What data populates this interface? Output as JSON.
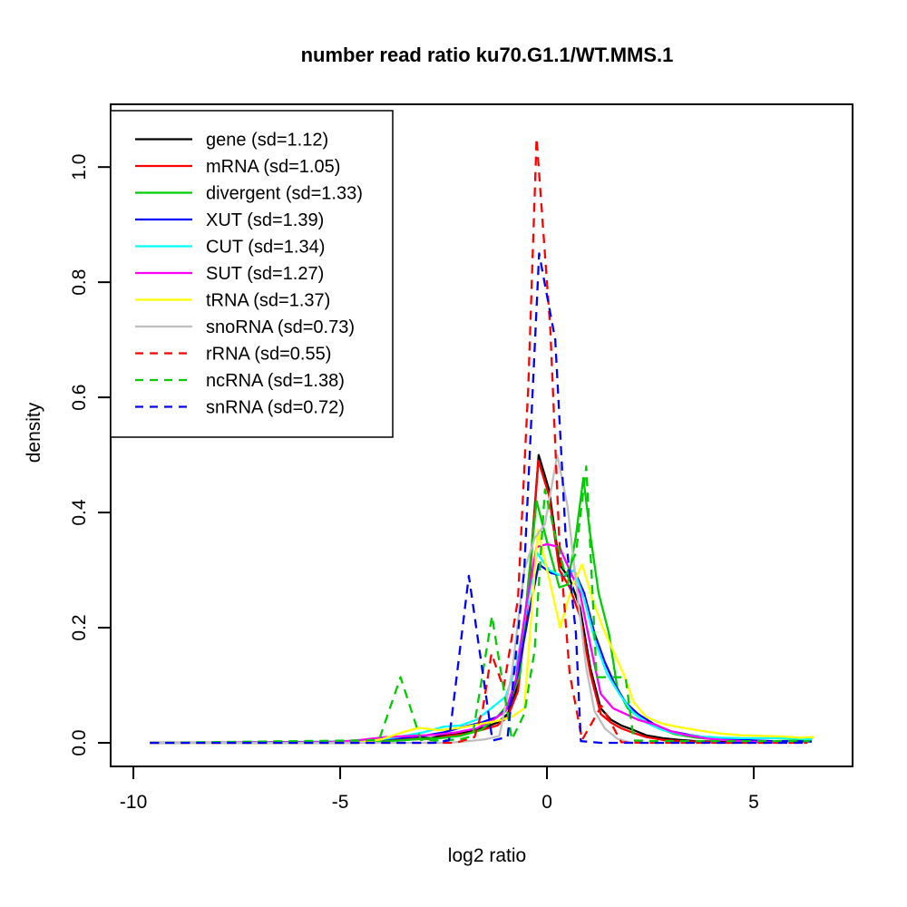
{
  "chart_data": {
    "type": "line",
    "title": "number read ratio ku70.G1.1/WT.MMS.1",
    "xlabel": "log2 ratio",
    "ylabel": "density",
    "xlim": [
      -10.55,
      7.39
    ],
    "ylim": [
      -0.041,
      1.109
    ],
    "x_ticks": [
      "-10",
      "-5",
      "0",
      "5"
    ],
    "x_tick_values": [
      -10,
      -5,
      0,
      5
    ],
    "y_ticks": [
      "0.0",
      "0.2",
      "0.4",
      "0.6",
      "0.8",
      "1.0"
    ],
    "y_tick_values": [
      0.0,
      0.2,
      0.4,
      0.6,
      0.8,
      1.0
    ],
    "grid": false,
    "legend_position": "top-left",
    "series": [
      {
        "name": "gene",
        "label": "gene (sd=1.12)",
        "color": "#000000",
        "style": "solid",
        "points": [
          [
            -9.6,
            0
          ],
          [
            -5,
            0.001
          ],
          [
            -4.5,
            0.002
          ],
          [
            -3.8,
            0.004
          ],
          [
            -3.2,
            0.01
          ],
          [
            -2.8,
            0.008
          ],
          [
            -2.4,
            0.015
          ],
          [
            -2,
            0.018
          ],
          [
            -1.6,
            0.025
          ],
          [
            -1.2,
            0.035
          ],
          [
            -0.95,
            0.05
          ],
          [
            -0.7,
            0.1
          ],
          [
            -0.45,
            0.26
          ],
          [
            -0.2,
            0.5
          ],
          [
            0.05,
            0.44
          ],
          [
            0.3,
            0.31
          ],
          [
            0.55,
            0.285
          ],
          [
            0.8,
            0.235
          ],
          [
            1.05,
            0.13
          ],
          [
            1.3,
            0.06
          ],
          [
            1.55,
            0.04
          ],
          [
            1.8,
            0.03
          ],
          [
            2.1,
            0.022
          ],
          [
            2.4,
            0.013
          ],
          [
            2.8,
            0.008
          ],
          [
            3.2,
            0.005
          ],
          [
            3.6,
            0.003
          ],
          [
            4,
            0.002
          ],
          [
            4.5,
            0.001
          ],
          [
            4.8,
            0
          ]
        ]
      },
      {
        "name": "mRNA",
        "label": "mRNA (sd=1.05)",
        "color": "#FF0000",
        "style": "solid",
        "points": [
          [
            -9.6,
            0
          ],
          [
            -5,
            0
          ],
          [
            -4,
            0.002
          ],
          [
            -3.3,
            0.009
          ],
          [
            -2.8,
            0.006
          ],
          [
            -2.4,
            0.012
          ],
          [
            -2,
            0.015
          ],
          [
            -1.6,
            0.022
          ],
          [
            -1.2,
            0.03
          ],
          [
            -0.95,
            0.045
          ],
          [
            -0.7,
            0.09
          ],
          [
            -0.45,
            0.25
          ],
          [
            -0.21,
            0.49
          ],
          [
            0.05,
            0.43
          ],
          [
            0.3,
            0.3
          ],
          [
            0.55,
            0.27
          ],
          [
            0.8,
            0.22
          ],
          [
            1.05,
            0.12
          ],
          [
            1.3,
            0.05
          ],
          [
            1.55,
            0.035
          ],
          [
            1.8,
            0.025
          ],
          [
            2.1,
            0.017
          ],
          [
            2.4,
            0.01
          ],
          [
            2.8,
            0.005
          ],
          [
            3.2,
            0.003
          ],
          [
            3.6,
            0.002
          ],
          [
            4,
            0.001
          ],
          [
            4.4,
            0
          ]
        ]
      },
      {
        "name": "divergent",
        "label": "divergent (sd=1.33)",
        "color": "#00CD00",
        "style": "solid",
        "points": [
          [
            -9.6,
            0
          ],
          [
            -4.6,
            0
          ],
          [
            -3.8,
            0.003
          ],
          [
            -3.2,
            0.006
          ],
          [
            -2.6,
            0.008
          ],
          [
            -2.1,
            0.012
          ],
          [
            -1.6,
            0.022
          ],
          [
            -1.2,
            0.045
          ],
          [
            -0.9,
            0.07
          ],
          [
            -0.65,
            0.12
          ],
          [
            -0.45,
            0.28
          ],
          [
            -0.25,
            0.42
          ],
          [
            0,
            0.35
          ],
          [
            0.3,
            0.27
          ],
          [
            0.5,
            0.275
          ],
          [
            0.7,
            0.36
          ],
          [
            0.88,
            0.46
          ],
          [
            1.05,
            0.36
          ],
          [
            1.25,
            0.26
          ],
          [
            1.5,
            0.19
          ],
          [
            1.7,
            0.095
          ],
          [
            1.95,
            0.06
          ],
          [
            2.3,
            0.04
          ],
          [
            2.7,
            0.025
          ],
          [
            3.1,
            0.015
          ],
          [
            3.6,
            0.009
          ],
          [
            4.1,
            0.006
          ],
          [
            4.7,
            0.004
          ],
          [
            5.4,
            0.003
          ],
          [
            6,
            0.004
          ],
          [
            6.4,
            0.004
          ]
        ]
      },
      {
        "name": "XUT",
        "label": "XUT (sd=1.39)",
        "color": "#0000FF",
        "style": "solid",
        "points": [
          [
            -9.6,
            0
          ],
          [
            -4.8,
            0.002
          ],
          [
            -4.2,
            0.005
          ],
          [
            -3.6,
            0.008
          ],
          [
            -3,
            0.012
          ],
          [
            -2.5,
            0.018
          ],
          [
            -2,
            0.028
          ],
          [
            -1.6,
            0.035
          ],
          [
            -1.2,
            0.045
          ],
          [
            -0.95,
            0.06
          ],
          [
            -0.7,
            0.12
          ],
          [
            -0.45,
            0.22
          ],
          [
            -0.2,
            0.31
          ],
          [
            0.1,
            0.295
          ],
          [
            0.4,
            0.29
          ],
          [
            0.65,
            0.3
          ],
          [
            0.9,
            0.26
          ],
          [
            1.15,
            0.19
          ],
          [
            1.4,
            0.14
          ],
          [
            1.65,
            0.1
          ],
          [
            1.9,
            0.07
          ],
          [
            2.2,
            0.05
          ],
          [
            2.6,
            0.032
          ],
          [
            3,
            0.02
          ],
          [
            3.5,
            0.013
          ],
          [
            4,
            0.008
          ],
          [
            4.5,
            0.006
          ],
          [
            5,
            0.004
          ],
          [
            5.5,
            0.003
          ],
          [
            6,
            0.003
          ],
          [
            6.4,
            0.002
          ]
        ]
      },
      {
        "name": "CUT",
        "label": "CUT (sd=1.34)",
        "color": "#00FFFF",
        "style": "solid",
        "points": [
          [
            -9.6,
            0
          ],
          [
            -4.8,
            0
          ],
          [
            -4.2,
            0.004
          ],
          [
            -3.6,
            0.01
          ],
          [
            -3,
            0.018
          ],
          [
            -2.5,
            0.028
          ],
          [
            -2.1,
            0.03
          ],
          [
            -1.7,
            0.04
          ],
          [
            -1.35,
            0.06
          ],
          [
            -1,
            0.08
          ],
          [
            -0.75,
            0.13
          ],
          [
            -0.5,
            0.23
          ],
          [
            -0.24,
            0.33
          ],
          [
            0.05,
            0.3
          ],
          [
            0.35,
            0.29
          ],
          [
            0.65,
            0.3
          ],
          [
            0.9,
            0.25
          ],
          [
            1.15,
            0.18
          ],
          [
            1.45,
            0.12
          ],
          [
            1.75,
            0.085
          ],
          [
            2.05,
            0.055
          ],
          [
            2.4,
            0.035
          ],
          [
            2.8,
            0.022
          ],
          [
            3.2,
            0.015
          ],
          [
            3.7,
            0.011
          ],
          [
            4.2,
            0.009
          ],
          [
            4.7,
            0.008
          ],
          [
            5.2,
            0.008
          ],
          [
            5.7,
            0.008
          ],
          [
            6.1,
            0.007
          ],
          [
            6.4,
            0.006
          ]
        ]
      },
      {
        "name": "SUT",
        "label": "SUT (sd=1.27)",
        "color": "#FF00FF",
        "style": "solid",
        "points": [
          [
            -9.6,
            0
          ],
          [
            -5.2,
            0.001
          ],
          [
            -4.5,
            0.005
          ],
          [
            -3.9,
            0.01
          ],
          [
            -3.3,
            0.012
          ],
          [
            -2.7,
            0.014
          ],
          [
            -2.2,
            0.018
          ],
          [
            -1.7,
            0.025
          ],
          [
            -1.3,
            0.04
          ],
          [
            -1,
            0.055
          ],
          [
            -0.75,
            0.11
          ],
          [
            -0.5,
            0.24
          ],
          [
            -0.25,
            0.34
          ],
          [
            0,
            0.345
          ],
          [
            0.3,
            0.34
          ],
          [
            0.55,
            0.3
          ],
          [
            0.8,
            0.26
          ],
          [
            1.05,
            0.17
          ],
          [
            1.3,
            0.085
          ],
          [
            1.6,
            0.06
          ],
          [
            1.9,
            0.05
          ],
          [
            2.2,
            0.04
          ],
          [
            2.6,
            0.032
          ],
          [
            3,
            0.02
          ],
          [
            3.4,
            0.013
          ],
          [
            3.9,
            0.007
          ],
          [
            4.4,
            0.004
          ],
          [
            4.9,
            0.002
          ],
          [
            5.3,
            0.001
          ],
          [
            5.6,
            0
          ]
        ]
      },
      {
        "name": "tRNA",
        "label": "tRNA (sd=1.37)",
        "color": "#FFFF00",
        "style": "solid",
        "points": [
          [
            -9.6,
            0
          ],
          [
            -4.6,
            0
          ],
          [
            -4,
            0.006
          ],
          [
            -3.5,
            0.018
          ],
          [
            -3.1,
            0.026
          ],
          [
            -2.6,
            0.022
          ],
          [
            -2.1,
            0.026
          ],
          [
            -1.6,
            0.033
          ],
          [
            -1.2,
            0.038
          ],
          [
            -0.85,
            0.045
          ],
          [
            -0.55,
            0.06
          ],
          [
            -0.22,
            0.37
          ],
          [
            0.1,
            0.27
          ],
          [
            0.32,
            0.2
          ],
          [
            0.6,
            0.27
          ],
          [
            0.85,
            0.31
          ],
          [
            1.1,
            0.25
          ],
          [
            1.35,
            0.2
          ],
          [
            1.6,
            0.16
          ],
          [
            1.85,
            0.12
          ],
          [
            2.1,
            0.07
          ],
          [
            2.4,
            0.045
          ],
          [
            2.8,
            0.033
          ],
          [
            3.2,
            0.027
          ],
          [
            3.7,
            0.021
          ],
          [
            4.2,
            0.016
          ],
          [
            4.7,
            0.013
          ],
          [
            5.2,
            0.012
          ],
          [
            5.7,
            0.011
          ],
          [
            6.1,
            0.009
          ],
          [
            6.45,
            0.01
          ]
        ]
      },
      {
        "name": "snoRNA",
        "label": "snoRNA (sd=0.73)",
        "color": "#BEBEBE",
        "style": "solid",
        "points": [
          [
            -9.6,
            0
          ],
          [
            -2.4,
            0
          ],
          [
            -1.9,
            0.003
          ],
          [
            -1.5,
            0.006
          ],
          [
            -1.15,
            0.012
          ],
          [
            -0.85,
            0.12
          ],
          [
            -0.55,
            0.3
          ],
          [
            -0.3,
            0.355
          ],
          [
            -0.05,
            0.38
          ],
          [
            0.25,
            0.5
          ],
          [
            0.5,
            0.41
          ],
          [
            0.75,
            0.25
          ],
          [
            0.95,
            0.13
          ],
          [
            1.15,
            0.055
          ],
          [
            1.4,
            0.025
          ],
          [
            1.7,
            0.007
          ],
          [
            2.05,
            0
          ]
        ]
      },
      {
        "name": "rRNA",
        "label": "rRNA (sd=0.55)",
        "color": "#FF0000",
        "style": "dashed",
        "points": [
          [
            -9.6,
            0
          ],
          [
            -2.2,
            0
          ],
          [
            -1.75,
            0.01
          ],
          [
            -1.55,
            0.06
          ],
          [
            -1.34,
            0.155
          ],
          [
            -1.05,
            0.095
          ],
          [
            -0.7,
            0.25
          ],
          [
            -0.45,
            0.62
          ],
          [
            -0.25,
            1.05
          ],
          [
            0.08,
            0.72
          ],
          [
            0.3,
            0.35
          ],
          [
            0.55,
            0.12
          ],
          [
            0.85,
            0.005
          ],
          [
            1.32,
            0.064
          ],
          [
            1.8,
            0.001
          ],
          [
            2.4,
            0
          ],
          [
            6.3,
            0
          ]
        ]
      },
      {
        "name": "ncRNA",
        "label": "ncRNA (sd=1.38)",
        "color": "#00CD00",
        "style": "dashed",
        "points": [
          [
            -9.6,
            0
          ],
          [
            -4.6,
            0.004
          ],
          [
            -4.06,
            0.005
          ],
          [
            -3.54,
            0.114
          ],
          [
            -3.05,
            0.005
          ],
          [
            -2.6,
            0.004
          ],
          [
            -2.1,
            0.006
          ],
          [
            -1.8,
            0.012
          ],
          [
            -1.33,
            0.22
          ],
          [
            -0.85,
            0.006
          ],
          [
            -0.55,
            0.05
          ],
          [
            -0.3,
            0.16
          ],
          [
            -0.05,
            0.44
          ],
          [
            0.2,
            0.36
          ],
          [
            0.45,
            0.29
          ],
          [
            0.7,
            0.33
          ],
          [
            0.95,
            0.48
          ],
          [
            1.2,
            0.114
          ],
          [
            1.9,
            0.114
          ],
          [
            2.1,
            0.004
          ],
          [
            2.6,
            0.003
          ],
          [
            3.5,
            0.003
          ],
          [
            4.5,
            0.003
          ],
          [
            5.5,
            0.003
          ],
          [
            6.35,
            0.003
          ]
        ]
      },
      {
        "name": "snRNA",
        "label": "snRNA (sd=0.72)",
        "color": "#0000FF",
        "style": "dashed",
        "points": [
          [
            -9.6,
            0
          ],
          [
            -2.75,
            0
          ],
          [
            -2.37,
            0.004
          ],
          [
            -1.89,
            0.29
          ],
          [
            -1.32,
            0.004
          ],
          [
            -0.95,
            0.01
          ],
          [
            -0.55,
            0.3
          ],
          [
            -0.19,
            0.85
          ],
          [
            0.2,
            0.7
          ],
          [
            0.45,
            0.36
          ],
          [
            0.7,
            0.19
          ],
          [
            0.82,
            0.003
          ],
          [
            1.3,
            0
          ],
          [
            2.5,
            0
          ],
          [
            4,
            0
          ],
          [
            6.2,
            0
          ]
        ]
      }
    ]
  }
}
